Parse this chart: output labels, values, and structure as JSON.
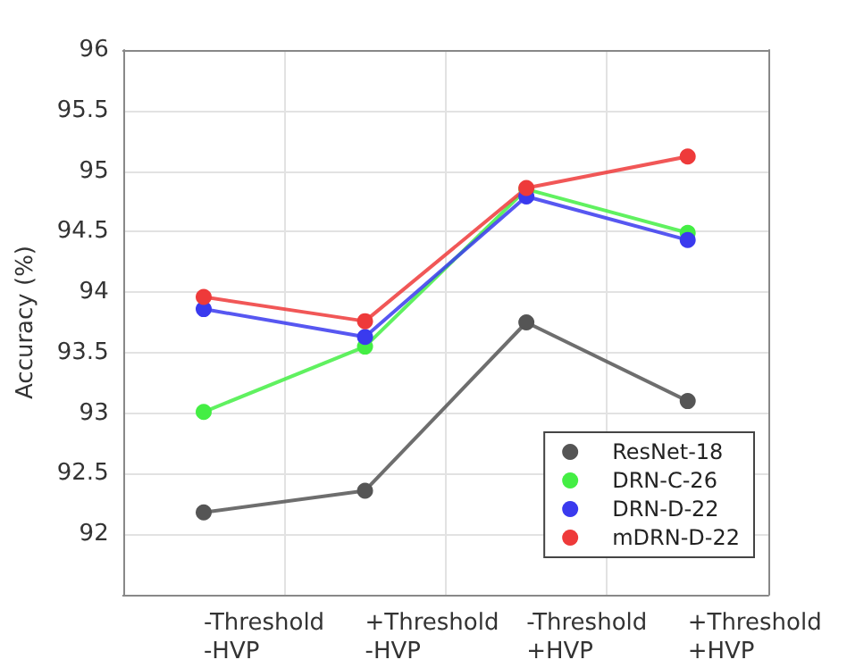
{
  "chart_data": {
    "type": "line",
    "ylabel": "Accuracy (%)",
    "categories": [
      "-Threshold\n-HVP",
      "+Threshold\n-HVP",
      "-Threshold\n+HVP",
      "+Threshold\n+HVP"
    ],
    "series": [
      {
        "name": "ResNet-18",
        "color": "#555555",
        "values": [
          92.18,
          92.36,
          93.75,
          93.1
        ]
      },
      {
        "name": "DRN-C-26",
        "color": "#44ee44",
        "values": [
          93.01,
          93.55,
          94.85,
          94.49
        ]
      },
      {
        "name": "DRN-D-22",
        "color": "#3a3aee",
        "values": [
          93.86,
          93.63,
          94.79,
          94.43
        ]
      },
      {
        "name": "mDRN-D-22",
        "color": "#ee3a3a",
        "values": [
          93.96,
          93.76,
          94.86,
          95.12
        ]
      }
    ],
    "ylim": [
      91.5,
      96
    ],
    "yticks": [
      92,
      92.5,
      93,
      93.5,
      94,
      94.5,
      95,
      95.5,
      96
    ],
    "grid": true,
    "legend": "bottom right",
    "marker": "circle",
    "line_style": "solid"
  }
}
